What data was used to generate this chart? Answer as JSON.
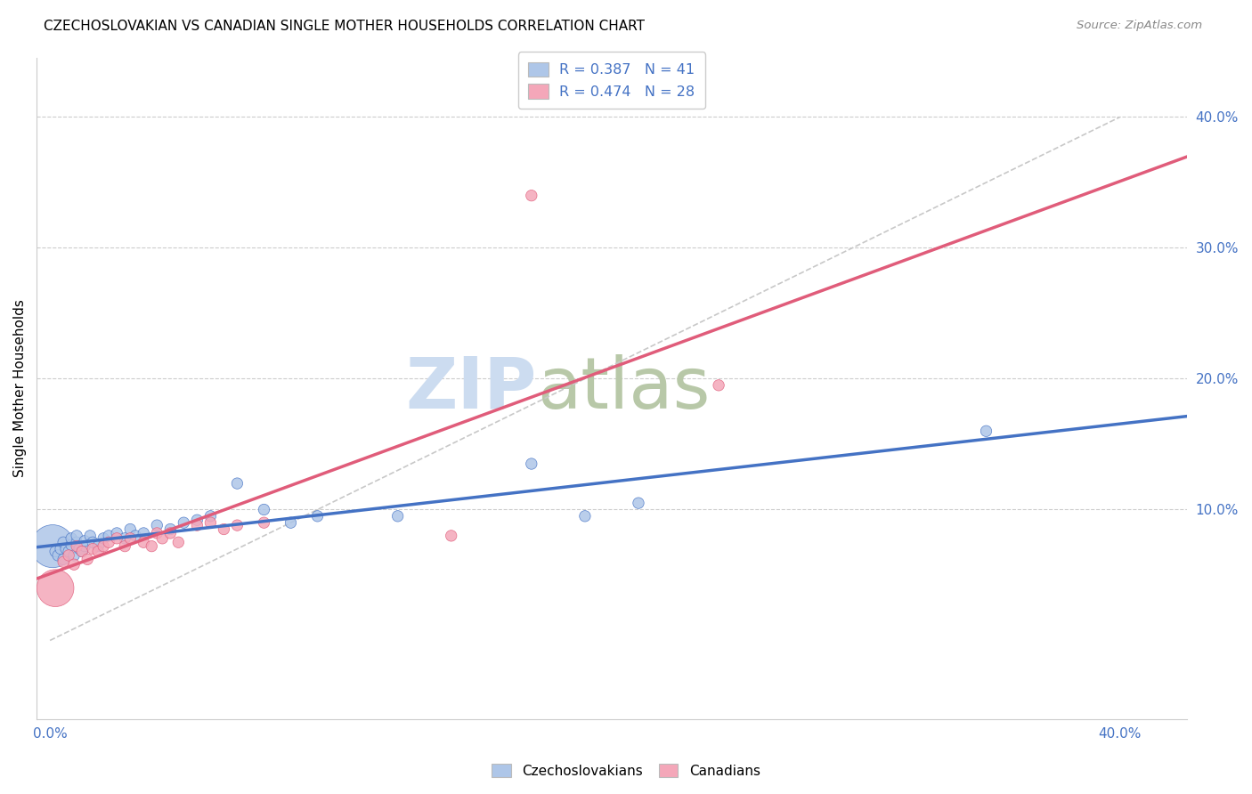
{
  "title": "CZECHOSLOVAKIAN VS CANADIAN SINGLE MOTHER HOUSEHOLDS CORRELATION CHART",
  "source": "Source: ZipAtlas.com",
  "ylabel": "Single Mother Households",
  "ytick_vals": [
    0.1,
    0.2,
    0.3,
    0.4
  ],
  "xlim": [
    -0.005,
    0.425
  ],
  "ylim": [
    -0.06,
    0.445
  ],
  "legend_entries": [
    {
      "label": "R = 0.387   N = 41"
    },
    {
      "label": "R = 0.474   N = 28"
    }
  ],
  "legend_labels_bottom": [
    "Czechoslovakians",
    "Canadians"
  ],
  "czechoslovakian_color": "#aec6e8",
  "canadian_color": "#f4a7b9",
  "trend_czech_color": "#4472c4",
  "trend_canadian_color": "#e05c7a",
  "diagonal_color": "#c8c8c8",
  "background_color": "#ffffff",
  "grid_color": "#cccccc",
  "tick_color": "#4472c4",
  "czechoslovakians_x": [
    0.001,
    0.002,
    0.003,
    0.004,
    0.005,
    0.005,
    0.006,
    0.007,
    0.008,
    0.008,
    0.009,
    0.01,
    0.01,
    0.011,
    0.012,
    0.013,
    0.013,
    0.015,
    0.016,
    0.018,
    0.02,
    0.022,
    0.025,
    0.028,
    0.03,
    0.032,
    0.035,
    0.04,
    0.045,
    0.05,
    0.055,
    0.06,
    0.07,
    0.08,
    0.09,
    0.1,
    0.13,
    0.18,
    0.2,
    0.22,
    0.35
  ],
  "czechoslovakians_y": [
    0.072,
    0.068,
    0.065,
    0.07,
    0.062,
    0.075,
    0.07,
    0.068,
    0.073,
    0.078,
    0.065,
    0.075,
    0.08,
    0.07,
    0.068,
    0.072,
    0.076,
    0.08,
    0.075,
    0.072,
    0.078,
    0.08,
    0.082,
    0.078,
    0.085,
    0.08,
    0.082,
    0.088,
    0.085,
    0.09,
    0.092,
    0.095,
    0.12,
    0.1,
    0.09,
    0.095,
    0.095,
    0.135,
    0.095,
    0.105,
    0.16
  ],
  "czechoslovakians_size": [
    1200,
    80,
    80,
    80,
    80,
    80,
    80,
    80,
    80,
    80,
    80,
    80,
    80,
    80,
    80,
    80,
    80,
    80,
    80,
    80,
    80,
    80,
    80,
    80,
    80,
    80,
    80,
    80,
    80,
    80,
    80,
    80,
    80,
    80,
    80,
    80,
    80,
    80,
    80,
    80,
    80
  ],
  "canadians_x": [
    0.002,
    0.005,
    0.007,
    0.009,
    0.01,
    0.012,
    0.014,
    0.016,
    0.018,
    0.02,
    0.022,
    0.025,
    0.028,
    0.03,
    0.035,
    0.038,
    0.04,
    0.042,
    0.045,
    0.048,
    0.055,
    0.06,
    0.065,
    0.07,
    0.08,
    0.15,
    0.18,
    0.25
  ],
  "canadians_y": [
    0.04,
    0.06,
    0.065,
    0.058,
    0.072,
    0.068,
    0.062,
    0.07,
    0.068,
    0.072,
    0.075,
    0.078,
    0.072,
    0.078,
    0.075,
    0.072,
    0.082,
    0.078,
    0.082,
    0.075,
    0.088,
    0.09,
    0.085,
    0.088,
    0.09,
    0.08,
    0.34,
    0.195
  ],
  "canadians_size": [
    900,
    80,
    80,
    80,
    80,
    80,
    80,
    80,
    80,
    80,
    80,
    80,
    80,
    80,
    80,
    80,
    80,
    80,
    80,
    80,
    80,
    80,
    80,
    80,
    80,
    80,
    80,
    80
  ],
  "watermark_zip": "ZIP",
  "watermark_atlas": "atlas",
  "watermark_color_zip": "#ccdcf0",
  "watermark_color_atlas": "#b8c8a8"
}
